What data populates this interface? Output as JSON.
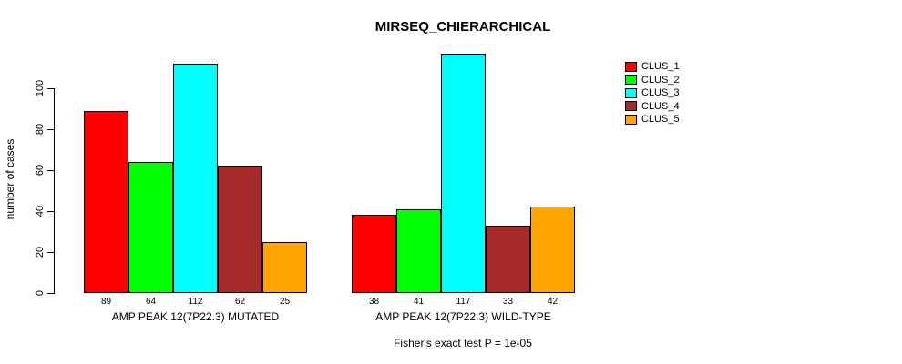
{
  "chart_data": {
    "type": "bar",
    "title": "MIRSEQ_CHIERARCHICAL",
    "ylabel": "number of cases",
    "xlabel": "",
    "ylim": [
      0,
      117
    ],
    "yticks": [
      0,
      20,
      40,
      60,
      80,
      100
    ],
    "grid": false,
    "legend_position": "right-outside-top",
    "bar_border_color": "#000000",
    "categories": [
      "AMP PEAK 12(7P22.3) MUTATED",
      "AMP PEAK 12(7P22.3) WILD-TYPE"
    ],
    "series": [
      {
        "name": "CLUS_1",
        "color": "#FF0000",
        "values": [
          89,
          38
        ]
      },
      {
        "name": "CLUS_2",
        "color": "#00FF00",
        "values": [
          64,
          41
        ]
      },
      {
        "name": "CLUS_3",
        "color": "#00FFFF",
        "values": [
          112,
          117
        ]
      },
      {
        "name": "CLUS_4",
        "color": "#A52A2A",
        "values": [
          62,
          33
        ]
      },
      {
        "name": "CLUS_5",
        "color": "#FFA500",
        "values": [
          25,
          42
        ]
      }
    ],
    "bar_value_labels": [
      [
        89,
        64,
        112,
        62,
        25
      ],
      [
        38,
        41,
        117,
        33,
        42
      ]
    ],
    "footnote": "Fisher's exact test P = 1e-05"
  }
}
